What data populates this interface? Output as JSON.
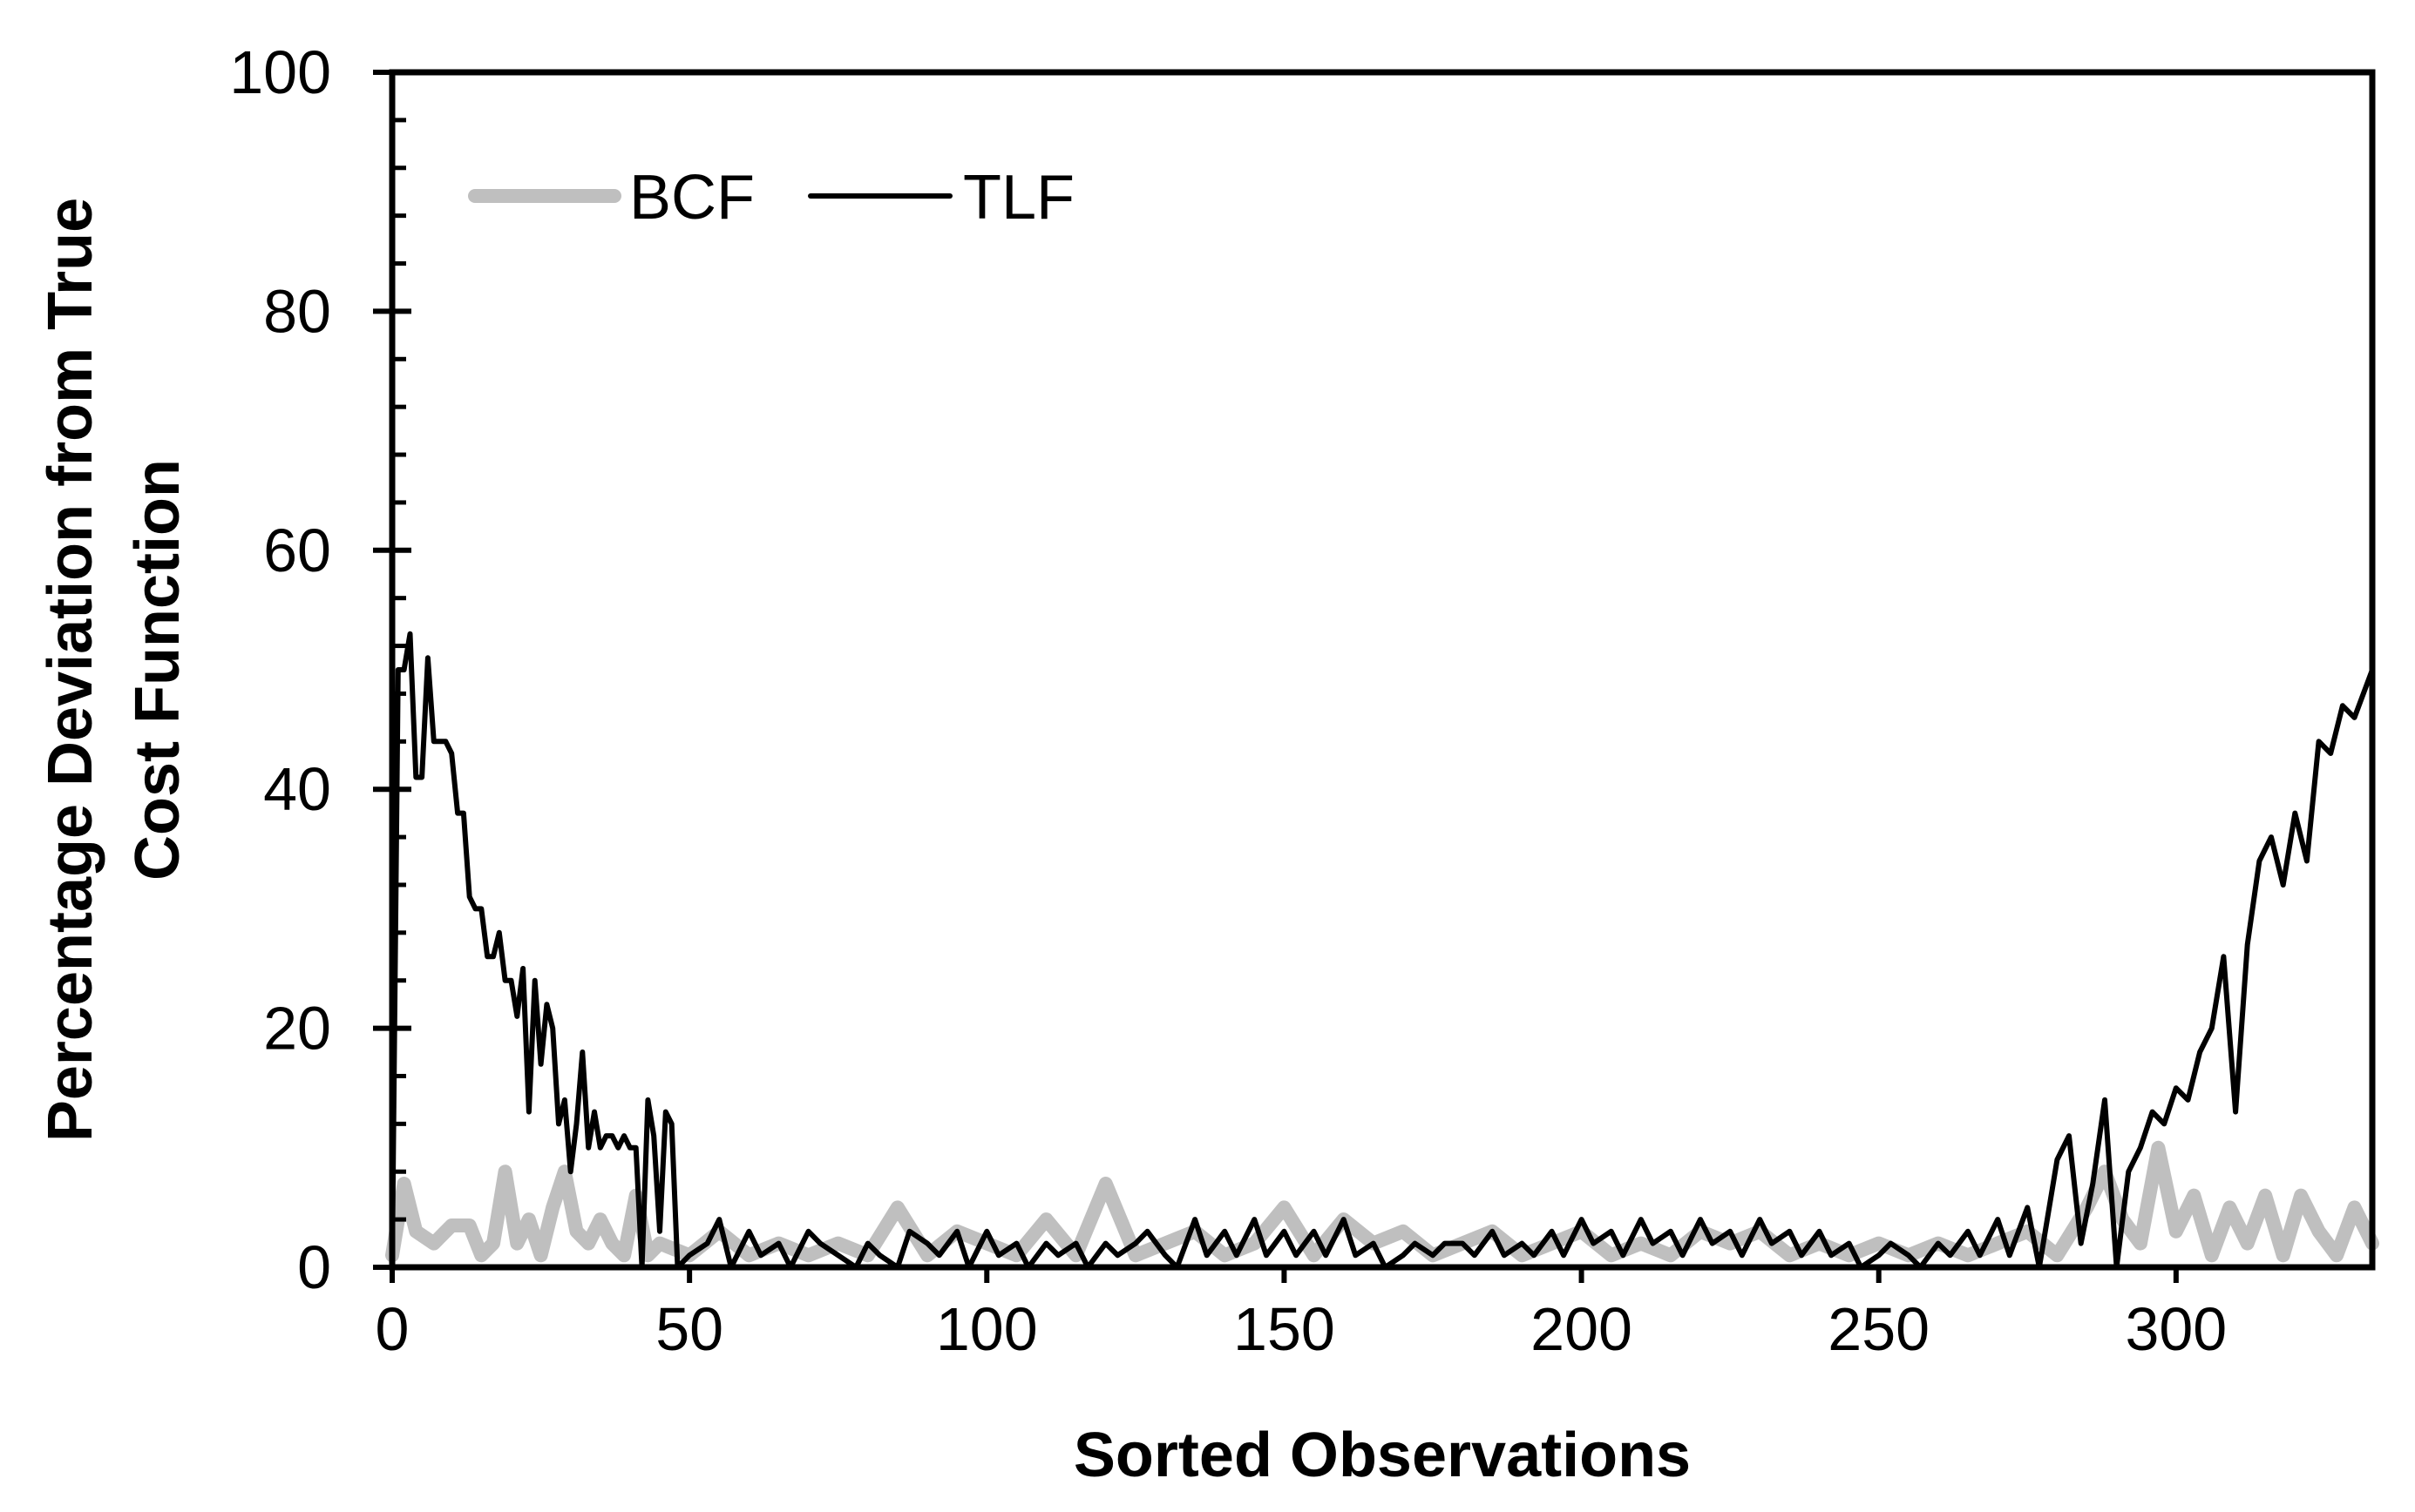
{
  "chart_data": {
    "type": "line",
    "title": "",
    "xlabel": "Sorted Observations",
    "ylabel_lines": [
      "Percentage Deviation from True",
      "Cost Function"
    ],
    "xlim": [
      0,
      333
    ],
    "ylim": [
      0,
      100
    ],
    "x_ticks": [
      0,
      50,
      100,
      150,
      200,
      250,
      300
    ],
    "x_tick_labels": [
      "0",
      "50",
      "100",
      "150",
      "200",
      "250",
      "300"
    ],
    "y_ticks": [
      0,
      20,
      40,
      60,
      80,
      100
    ],
    "y_tick_labels": [
      "0",
      "20",
      "40",
      "60",
      "80",
      "100"
    ],
    "y_minor_step": 4,
    "grid": false,
    "legend_position": "top-left",
    "series": [
      {
        "name": "BCF",
        "color": "#bfbfbf",
        "stroke_style": "thick",
        "points": [
          [
            0,
            1
          ],
          [
            2,
            7
          ],
          [
            4,
            3
          ],
          [
            7,
            2
          ],
          [
            10,
            3.5
          ],
          [
            13,
            3.5
          ],
          [
            15,
            1
          ],
          [
            17,
            2
          ],
          [
            19,
            8
          ],
          [
            21,
            2
          ],
          [
            23,
            4
          ],
          [
            25,
            1
          ],
          [
            27,
            5
          ],
          [
            29,
            8
          ],
          [
            31,
            3
          ],
          [
            33,
            2
          ],
          [
            35,
            4
          ],
          [
            37,
            2
          ],
          [
            39,
            1
          ],
          [
            41,
            6
          ],
          [
            43,
            1
          ],
          [
            45,
            2
          ],
          [
            50,
            1
          ],
          [
            55,
            3
          ],
          [
            60,
            1
          ],
          [
            65,
            2
          ],
          [
            70,
            1
          ],
          [
            75,
            2
          ],
          [
            80,
            1
          ],
          [
            85,
            5
          ],
          [
            90,
            1
          ],
          [
            95,
            3
          ],
          [
            100,
            2
          ],
          [
            105,
            1
          ],
          [
            110,
            4
          ],
          [
            115,
            1
          ],
          [
            120,
            7
          ],
          [
            125,
            1
          ],
          [
            130,
            2
          ],
          [
            135,
            3
          ],
          [
            140,
            1
          ],
          [
            145,
            2
          ],
          [
            150,
            5
          ],
          [
            155,
            1
          ],
          [
            160,
            4
          ],
          [
            165,
            2
          ],
          [
            170,
            3
          ],
          [
            175,
            1
          ],
          [
            180,
            2
          ],
          [
            185,
            3
          ],
          [
            190,
            1
          ],
          [
            195,
            2
          ],
          [
            200,
            3
          ],
          [
            205,
            1
          ],
          [
            210,
            2
          ],
          [
            215,
            1
          ],
          [
            220,
            3
          ],
          [
            225,
            2
          ],
          [
            230,
            3
          ],
          [
            235,
            1
          ],
          [
            240,
            2
          ],
          [
            245,
            1
          ],
          [
            250,
            2
          ],
          [
            255,
            1
          ],
          [
            260,
            2
          ],
          [
            265,
            1
          ],
          [
            270,
            2
          ],
          [
            275,
            3
          ],
          [
            280,
            1
          ],
          [
            285,
            5
          ],
          [
            288,
            8
          ],
          [
            291,
            4
          ],
          [
            294,
            2
          ],
          [
            297,
            10
          ],
          [
            300,
            3
          ],
          [
            303,
            6
          ],
          [
            306,
            1
          ],
          [
            309,
            5
          ],
          [
            312,
            2
          ],
          [
            315,
            6
          ],
          [
            318,
            1
          ],
          [
            321,
            6
          ],
          [
            324,
            3
          ],
          [
            327,
            1
          ],
          [
            330,
            5
          ],
          [
            333,
            2
          ]
        ]
      },
      {
        "name": "TLF",
        "color": "#000000",
        "stroke_style": "thin",
        "points": [
          [
            0,
            0
          ],
          [
            1,
            50
          ],
          [
            2,
            50
          ],
          [
            3,
            53
          ],
          [
            4,
            41
          ],
          [
            5,
            41
          ],
          [
            6,
            51
          ],
          [
            7,
            44
          ],
          [
            9,
            44
          ],
          [
            10,
            43
          ],
          [
            11,
            38
          ],
          [
            12,
            38
          ],
          [
            13,
            31
          ],
          [
            14,
            30
          ],
          [
            15,
            30
          ],
          [
            16,
            26
          ],
          [
            17,
            26
          ],
          [
            18,
            28
          ],
          [
            19,
            24
          ],
          [
            20,
            24
          ],
          [
            21,
            21
          ],
          [
            22,
            25
          ],
          [
            23,
            13
          ],
          [
            24,
            24
          ],
          [
            25,
            17
          ],
          [
            26,
            22
          ],
          [
            27,
            20
          ],
          [
            28,
            12
          ],
          [
            29,
            14
          ],
          [
            30,
            8
          ],
          [
            31,
            12
          ],
          [
            32,
            18
          ],
          [
            33,
            10
          ],
          [
            34,
            13
          ],
          [
            35,
            10
          ],
          [
            36,
            11
          ],
          [
            37,
            11
          ],
          [
            38,
            10
          ],
          [
            39,
            11
          ],
          [
            40,
            10
          ],
          [
            41,
            10
          ],
          [
            42,
            0
          ],
          [
            43,
            14
          ],
          [
            44,
            11
          ],
          [
            45,
            3
          ],
          [
            46,
            13
          ],
          [
            47,
            12
          ],
          [
            48,
            0
          ],
          [
            50,
            1
          ],
          [
            53,
            2
          ],
          [
            55,
            4
          ],
          [
            57,
            0
          ],
          [
            60,
            3
          ],
          [
            62,
            1
          ],
          [
            65,
            2
          ],
          [
            67,
            0
          ],
          [
            70,
            3
          ],
          [
            72,
            2
          ],
          [
            75,
            1
          ],
          [
            78,
            0
          ],
          [
            80,
            2
          ],
          [
            82,
            1
          ],
          [
            85,
            0
          ],
          [
            87,
            3
          ],
          [
            90,
            2
          ],
          [
            92,
            1
          ],
          [
            95,
            3
          ],
          [
            97,
            0
          ],
          [
            100,
            3
          ],
          [
            102,
            1
          ],
          [
            105,
            2
          ],
          [
            107,
            0
          ],
          [
            110,
            2
          ],
          [
            112,
            1
          ],
          [
            115,
            2
          ],
          [
            117,
            0
          ],
          [
            120,
            2
          ],
          [
            122,
            1
          ],
          [
            125,
            2
          ],
          [
            127,
            3
          ],
          [
            130,
            1
          ],
          [
            132,
            0
          ],
          [
            135,
            4
          ],
          [
            137,
            1
          ],
          [
            140,
            3
          ],
          [
            142,
            1
          ],
          [
            145,
            4
          ],
          [
            147,
            1
          ],
          [
            150,
            3
          ],
          [
            152,
            1
          ],
          [
            155,
            3
          ],
          [
            157,
            1
          ],
          [
            160,
            4
          ],
          [
            162,
            1
          ],
          [
            165,
            2
          ],
          [
            167,
            0
          ],
          [
            170,
            1
          ],
          [
            172,
            2
          ],
          [
            175,
            1
          ],
          [
            177,
            2
          ],
          [
            180,
            2
          ],
          [
            182,
            1
          ],
          [
            185,
            3
          ],
          [
            187,
            1
          ],
          [
            190,
            2
          ],
          [
            192,
            1
          ],
          [
            195,
            3
          ],
          [
            197,
            1
          ],
          [
            200,
            4
          ],
          [
            202,
            2
          ],
          [
            205,
            3
          ],
          [
            207,
            1
          ],
          [
            210,
            4
          ],
          [
            212,
            2
          ],
          [
            215,
            3
          ],
          [
            217,
            1
          ],
          [
            220,
            4
          ],
          [
            222,
            2
          ],
          [
            225,
            3
          ],
          [
            227,
            1
          ],
          [
            230,
            4
          ],
          [
            232,
            2
          ],
          [
            235,
            3
          ],
          [
            237,
            1
          ],
          [
            240,
            3
          ],
          [
            242,
            1
          ],
          [
            245,
            2
          ],
          [
            247,
            0
          ],
          [
            250,
            1
          ],
          [
            252,
            2
          ],
          [
            255,
            1
          ],
          [
            257,
            0
          ],
          [
            260,
            2
          ],
          [
            262,
            1
          ],
          [
            265,
            3
          ],
          [
            267,
            1
          ],
          [
            270,
            4
          ],
          [
            272,
            1
          ],
          [
            275,
            5
          ],
          [
            277,
            0
          ],
          [
            280,
            9
          ],
          [
            282,
            11
          ],
          [
            284,
            2
          ],
          [
            286,
            7
          ],
          [
            288,
            14
          ],
          [
            290,
            0
          ],
          [
            292,
            8
          ],
          [
            294,
            10
          ],
          [
            296,
            13
          ],
          [
            298,
            12
          ],
          [
            300,
            15
          ],
          [
            302,
            14
          ],
          [
            304,
            18
          ],
          [
            306,
            20
          ],
          [
            308,
            26
          ],
          [
            310,
            13
          ],
          [
            312,
            27
          ],
          [
            314,
            34
          ],
          [
            316,
            36
          ],
          [
            318,
            32
          ],
          [
            320,
            38
          ],
          [
            322,
            34
          ],
          [
            324,
            44
          ],
          [
            326,
            43
          ],
          [
            328,
            47
          ],
          [
            330,
            46
          ],
          [
            333,
            50
          ]
        ]
      }
    ]
  }
}
